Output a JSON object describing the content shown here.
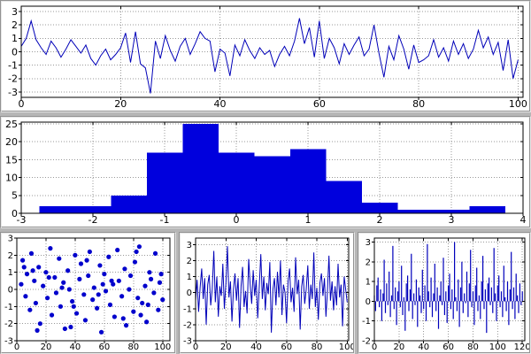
{
  "app": {
    "background": "#b6b6b6",
    "accent": "#0000cc",
    "grid_color": "#999999"
  },
  "chart_data": [
    {
      "id": "top-noise-line",
      "type": "line",
      "title": "",
      "xlabel": "",
      "ylabel": "",
      "color": "#0000b8",
      "grid": true,
      "xlim": [
        0,
        101
      ],
      "ylim": [
        -3.4,
        3.4
      ],
      "xticks": [
        0,
        20,
        40,
        60,
        80,
        100
      ],
      "yticks": [
        -3,
        -2,
        -1,
        0,
        1,
        2,
        3
      ],
      "x_start": 0,
      "x_step": 1,
      "values": [
        0.4,
        1.0,
        2.3,
        0.9,
        0.3,
        -0.2,
        0.8,
        0.3,
        -0.4,
        0.2,
        0.9,
        0.4,
        -0.1,
        0.5,
        -0.5,
        -1.0,
        -0.3,
        0.2,
        -0.6,
        -0.2,
        0.3,
        1.4,
        -0.8,
        1.5,
        -0.9,
        -1.2,
        -3.1,
        0.8,
        -0.5,
        1.2,
        0.1,
        -0.7,
        0.4,
        1.0,
        -0.2,
        0.6,
        1.5,
        1.0,
        0.8,
        -1.5,
        0.2,
        -0.1,
        -1.8,
        0.5,
        -0.3,
        0.9,
        0.1,
        -0.5,
        0.3,
        -0.2,
        0.1,
        -1.1,
        -0.2,
        0.4,
        -0.3,
        0.8,
        2.5,
        0.6,
        1.8,
        -0.4,
        2.3,
        -0.5,
        1.0,
        0.3,
        -0.9,
        0.6,
        -0.2,
        0.5,
        1.1,
        -0.3,
        0.2,
        2.0,
        -0.1,
        -1.9,
        0.4,
        -0.6,
        1.2,
        0.2,
        -1.3,
        0.5,
        -0.8,
        -0.6,
        -0.3,
        0.9,
        -0.4,
        0.3,
        -0.7,
        0.8,
        -0.2,
        0.6,
        -0.5,
        0.2,
        1.6,
        0.3,
        1.1,
        -0.2,
        0.7,
        -1.4,
        0.9,
        -2.0,
        -0.6
      ]
    },
    {
      "id": "histogram",
      "type": "histogram",
      "title": "",
      "xlabel": "",
      "ylabel": "",
      "color": "#0000dd",
      "grid": true,
      "xlim": [
        -3,
        4
      ],
      "ylim": [
        0,
        25.5
      ],
      "xticks": [
        -3,
        -2,
        -1,
        0,
        1,
        2,
        3,
        4
      ],
      "yticks": [
        0,
        5,
        10,
        15,
        20,
        25
      ],
      "bin_width": 0.5,
      "bin_left": [
        -2.75,
        -2.25,
        -1.75,
        -1.25,
        -0.75,
        -0.25,
        0.25,
        0.75,
        1.25,
        1.75,
        2.25,
        2.75,
        3.25
      ],
      "counts": [
        2,
        2,
        5,
        17,
        25,
        17,
        16,
        18,
        9,
        3,
        1,
        1,
        2
      ]
    },
    {
      "id": "scatter",
      "type": "scatter",
      "title": "",
      "xlabel": "",
      "ylabel": "",
      "color": "#0000cc",
      "grid": true,
      "xlim": [
        0,
        105
      ],
      "ylim": [
        -3,
        3
      ],
      "xticks": [
        0,
        20,
        40,
        60,
        80,
        100
      ],
      "yticks": [
        -3,
        -2,
        -1,
        0,
        1,
        2,
        3
      ],
      "x": [
        3,
        4,
        6,
        7,
        9,
        10,
        12,
        13,
        15,
        16,
        18,
        20,
        21,
        23,
        24,
        26,
        27,
        29,
        30,
        32,
        33,
        35,
        36,
        38,
        40,
        41,
        43,
        44,
        46,
        47,
        49,
        50,
        52,
        53,
        55,
        57,
        58,
        60,
        61,
        63,
        64,
        66,
        67,
        69,
        70,
        72,
        74,
        75,
        77,
        78,
        80,
        81,
        83,
        84,
        86,
        88,
        89,
        91,
        92,
        94,
        95,
        97,
        98,
        100,
        5,
        14,
        22,
        31,
        39,
        48,
        56,
        65,
        73,
        82,
        90,
        99,
        11,
        37,
        59,
        85
      ],
      "y": [
        0.3,
        1.7,
        -0.4,
        0.9,
        -1.2,
        2.1,
        0.5,
        -0.8,
        1.3,
        -2.0,
        0.2,
        1.0,
        -0.5,
        2.4,
        -1.5,
        0.7,
        -0.2,
        1.8,
        -1.0,
        0.4,
        -2.3,
        1.1,
        0.0,
        -0.7,
        2.0,
        -1.4,
        0.6,
        1.5,
        -0.3,
        -1.8,
        0.8,
        2.2,
        -0.6,
        0.1,
        -1.1,
        1.4,
        -2.5,
        0.9,
        -0.1,
        1.9,
        -0.9,
        0.3,
        -1.6,
        2.3,
        0.5,
        -0.4,
        1.2,
        -2.1,
        0.0,
        0.8,
        -1.3,
        1.6,
        -0.5,
        2.5,
        -0.8,
        0.2,
        -1.9,
        1.0,
        0.6,
        -0.2,
        2.1,
        -1.2,
        0.4,
        -0.6,
        1.3,
        -2.4,
        0.7,
        0.1,
        -1.0,
        1.7,
        -0.3,
        0.5,
        -1.7,
        2.2,
        -0.9,
        0.9,
        1.1,
        -2.2,
        0.3,
        -1.5
      ]
    },
    {
      "id": "bottom-noise-line",
      "type": "line",
      "title": "",
      "xlabel": "",
      "ylabel": "",
      "color": "#0000b8",
      "grid": true,
      "xlim": [
        0,
        101
      ],
      "ylim": [
        -3,
        3.4
      ],
      "xticks": [
        0,
        20,
        40,
        60,
        80,
        100
      ],
      "yticks": [
        -3,
        -2,
        -1,
        0,
        1,
        2,
        3
      ],
      "x_start": 0,
      "x_step": 1,
      "values": [
        -0.5,
        0.8,
        -1.2,
        0.3,
        1.5,
        -0.4,
        0.9,
        -2.0,
        0.5,
        1.1,
        -0.8,
        0.2,
        2.6,
        -0.6,
        1.0,
        -1.5,
        0.4,
        -0.2,
        1.8,
        -1.0,
        0.6,
        2.9,
        -0.3,
        0.7,
        -1.8,
        0.2,
        1.2,
        -0.5,
        0.9,
        -2.2,
        0.4,
        1.6,
        -0.9,
        0.1,
        -1.3,
        2.1,
        0.5,
        -0.7,
        1.4,
        -0.2,
        0.8,
        -1.6,
        0.3,
        2.4,
        -0.4,
        1.0,
        -1.1,
        0.6,
        -0.1,
        1.9,
        -2.5,
        0.2,
        0.9,
        -0.8,
        1.3,
        -0.3,
        2.0,
        -1.4,
        0.5,
        0.0,
        -1.9,
        0.7,
        1.5,
        -0.6,
        0.3,
        -1.2,
        2.2,
        -0.1,
        0.8,
        -2.3,
        0.4,
        1.1,
        -0.7,
        0.2,
        1.7,
        -1.0,
        0.5,
        -0.4,
        2.5,
        -0.9,
        0.3,
        -1.7,
        0.6,
        1.2,
        -0.2,
        0.9,
        -1.5,
        0.1,
        2.3,
        -0.5,
        0.7,
        -1.1,
        0.4,
        -0.8,
        1.8,
        -0.3,
        0.5,
        -2.1,
        1.0,
        0.2,
        -0.6
      ]
    },
    {
      "id": "stem",
      "type": "stem",
      "title": "",
      "xlabel": "",
      "ylabel": "",
      "color": "#0000bb",
      "grid": true,
      "xlim": [
        0,
        122
      ],
      "ylim": [
        -2,
        3.2
      ],
      "xticks": [
        0,
        20,
        40,
        60,
        80,
        100,
        120
      ],
      "yticks": [
        -2,
        -1,
        0,
        1,
        2,
        3
      ],
      "x_start": 0,
      "x_step": 1,
      "values": [
        0.3,
        -0.5,
        0.8,
        1.2,
        -0.3,
        0.6,
        -1.0,
        0.4,
        2.1,
        -0.6,
        0.9,
        -0.2,
        1.5,
        -0.8,
        0.3,
        2.8,
        -0.4,
        0.7,
        -1.2,
        0.5,
        1.0,
        -0.3,
        1.8,
        -0.7,
        0.2,
        -1.5,
        0.9,
        1.3,
        -0.5,
        0.6,
        2.4,
        -0.9,
        0.4,
        -0.2,
        1.1,
        -1.3,
        0.7,
        0.3,
        -0.6,
        1.6,
        -0.4,
        0.8,
        -1.0,
        2.9,
        0.5,
        -0.3,
        1.2,
        -0.8,
        0.4,
        1.9,
        -0.5,
        0.7,
        -1.4,
        0.3,
        1.0,
        -0.2,
        2.2,
        -0.7,
        0.5,
        -1.1,
        0.8,
        1.4,
        -0.4,
        0.6,
        -0.9,
        3.0,
        0.2,
        -0.5,
        1.1,
        -1.3,
        0.7,
        2.0,
        -0.6,
        0.4,
        -0.1,
        1.5,
        -0.8,
        0.9,
        2.6,
        -0.3,
        0.5,
        -1.2,
        0.8,
        1.7,
        -0.5,
        0.3,
        -0.9,
        1.0,
        2.3,
        -0.4,
        0.6,
        -1.6,
        0.9,
        1.2,
        -0.2,
        0.7,
        -0.6,
        2.7,
        0.4,
        -1.0,
        0.8,
        1.3,
        -0.3,
        0.5,
        -0.8,
        1.8,
        0.2,
        -0.5,
        1.0,
        -1.2,
        0.6,
        2.5,
        -0.4,
        0.7,
        -0.9,
        1.4,
        0.3,
        -0.6,
        0.9,
        -0.2,
        0.5
      ]
    }
  ]
}
